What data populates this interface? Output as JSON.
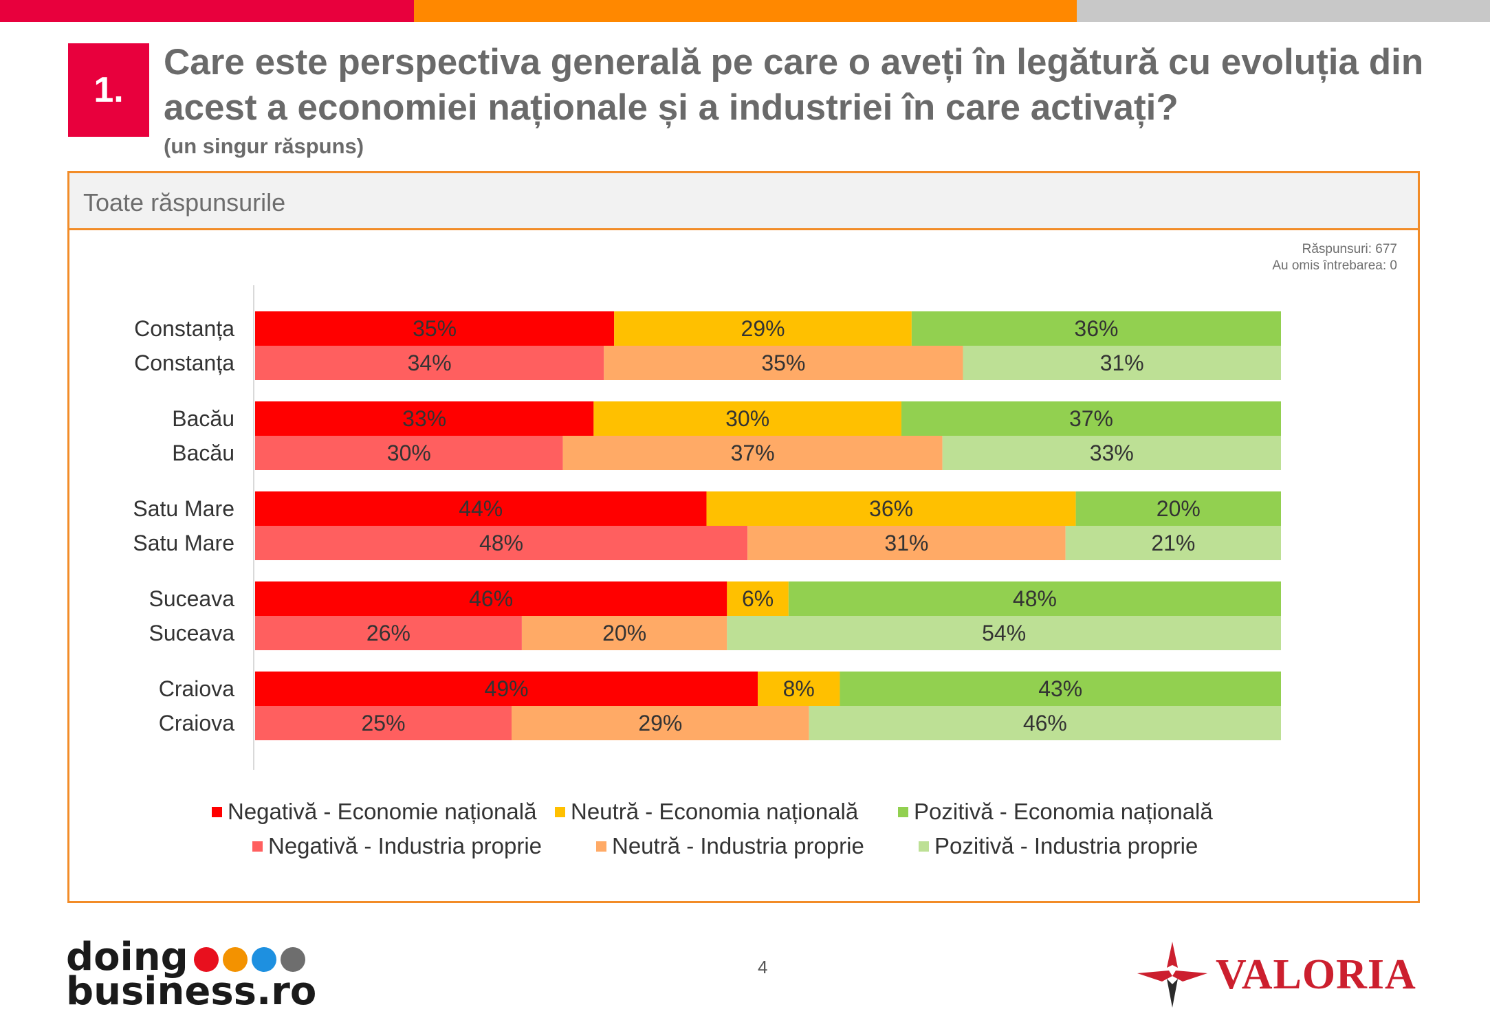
{
  "colors": {
    "topbar": [
      "#e8003d",
      "#ff8800",
      "#c8c8c8"
    ],
    "accent": "#e8003d",
    "panel_border": "#f28c28"
  },
  "slide": {
    "number": "1.",
    "title": "Care este perspectiva generală pe care o aveți în legătură cu evoluția din acest a economiei naționale și a industriei în care activați?",
    "subtitle": "(un singur răspuns)"
  },
  "panel": {
    "header": "Toate răspunsurile",
    "responses": "Răspunsuri: 677",
    "skipped": "Au omis întrebarea: 0"
  },
  "chart_data": {
    "type": "bar",
    "orientation": "horizontal",
    "stacked": "100%",
    "categories": [
      "Constanța",
      "Constanța",
      "Bacău",
      "Bacău",
      "Satu Mare",
      "Satu Mare",
      "Suceava",
      "Suceava",
      "Craiova",
      "Craiova"
    ],
    "rows": [
      {
        "label": "Constanța",
        "group": "Economia națională",
        "values": [
          35,
          29,
          36
        ]
      },
      {
        "label": "Constanța",
        "group": "Industria proprie",
        "values": [
          34,
          35,
          31
        ]
      },
      {
        "label": "Bacău",
        "group": "Economia națională",
        "values": [
          33,
          30,
          37
        ]
      },
      {
        "label": "Bacău",
        "group": "Industria proprie",
        "values": [
          30,
          37,
          33
        ]
      },
      {
        "label": "Satu Mare",
        "group": "Economia națională",
        "values": [
          44,
          36,
          20
        ]
      },
      {
        "label": "Satu Mare",
        "group": "Industria proprie",
        "values": [
          48,
          31,
          21
        ]
      },
      {
        "label": "Suceava",
        "group": "Economia națională",
        "values": [
          46,
          6,
          48
        ]
      },
      {
        "label": "Suceava",
        "group": "Industria proprie",
        "values": [
          26,
          20,
          54
        ]
      },
      {
        "label": "Craiova",
        "group": "Economia națională",
        "values": [
          49,
          8,
          43
        ]
      },
      {
        "label": "Craiova",
        "group": "Industria proprie",
        "values": [
          25,
          29,
          46
        ]
      }
    ],
    "palettes": {
      "Economia națională": [
        "#ff0000",
        "#ffc000",
        "#92d050"
      ],
      "Industria proprie": [
        "#ff5f5f",
        "#ffaa66",
        "#bde095"
      ]
    },
    "legend": [
      {
        "label": "Negativă - Economie națională",
        "color": "#ff0000"
      },
      {
        "label": "Neutră - Economia națională",
        "color": "#ffc000"
      },
      {
        "label": "Pozitivă - Economia națională",
        "color": "#92d050"
      },
      {
        "label": "Negativă - Industria proprie",
        "color": "#ff5f5f"
      },
      {
        "label": "Neutră - Industria proprie",
        "color": "#ffaa66"
      },
      {
        "label": "Pozitivă - Industria proprie",
        "color": "#bde095"
      }
    ],
    "value_suffix": "%",
    "xlim": [
      0,
      100
    ],
    "legend_position": "bottom"
  },
  "footer": {
    "page": "4",
    "logo_left_line1": "doing",
    "logo_left_line2": "business.ro",
    "logo_left_dots": [
      "#e8101e",
      "#f39200",
      "#1e90e0",
      "#6e6e6e"
    ],
    "logo_right": "VALORIA"
  }
}
